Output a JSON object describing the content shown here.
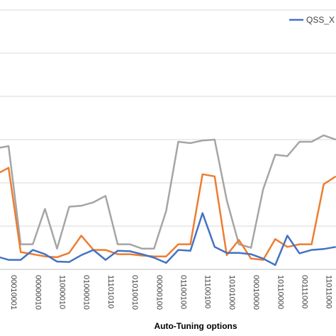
{
  "chart_data": {
    "type": "line",
    "xlabel": "Auto-Tuning options",
    "ylabel": "",
    "ylim": [
      0,
      6
    ],
    "grid": true,
    "legend_position": "top-right",
    "legend_entries": [
      "QSS_X"
    ],
    "x": [
      "",
      "00010001",
      "",
      "00000010",
      "",
      "11000010",
      "",
      "01000010",
      "",
      "11101010",
      "",
      "01010010",
      "",
      "00000100",
      "",
      "01100100",
      "",
      "11100100",
      "",
      "10101000",
      "",
      "00010000",
      "",
      "10110000",
      "",
      "00111000",
      "",
      "11011000",
      ""
    ],
    "series": [
      {
        "name": "QSS_X",
        "color": "#4472C4",
        "values": [
          0.3,
          0.22,
          0.22,
          0.45,
          0.35,
          0.18,
          0.17,
          0.33,
          0.45,
          0.22,
          0.43,
          0.42,
          0.35,
          0.27,
          0.15,
          0.45,
          0.43,
          1.3,
          0.52,
          0.38,
          0.38,
          0.35,
          0.25,
          0.1,
          0.78,
          0.37,
          0.45,
          0.47,
          0.52
        ]
      },
      {
        "color": "#ED7D31",
        "values": [
          2.2,
          2.35,
          0.4,
          0.35,
          0.3,
          0.28,
          0.38,
          0.78,
          0.45,
          0.45,
          0.35,
          0.35,
          0.32,
          0.3,
          0.3,
          0.58,
          0.58,
          2.2,
          2.15,
          0.33,
          0.68,
          0.25,
          0.22,
          0.7,
          0.52,
          0.58,
          0.58,
          1.97,
          2.15
        ]
      },
      {
        "color": "#A5A5A5",
        "values": [
          2.8,
          2.85,
          0.58,
          0.58,
          1.4,
          0.48,
          1.45,
          1.47,
          1.55,
          1.7,
          0.58,
          0.58,
          0.48,
          0.48,
          1.35,
          2.95,
          2.92,
          2.98,
          3.0,
          1.6,
          0.58,
          0.5,
          1.85,
          2.65,
          2.62,
          2.95,
          2.95,
          3.1,
          3.0
        ]
      }
    ],
    "legend_visible_text": "QSS_X"
  }
}
